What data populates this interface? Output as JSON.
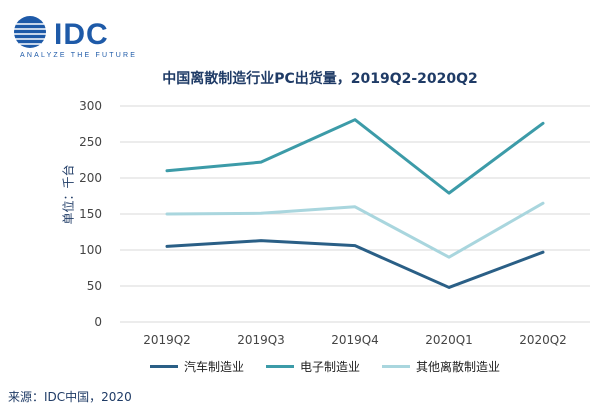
{
  "logo": {
    "text": "IDC",
    "tagline": "ANALYZE THE FUTURE"
  },
  "source": "来源：IDC中国，2020",
  "colors": {
    "series": [
      "#2a5f86",
      "#3c9ba8",
      "#a9d6de"
    ],
    "grid": "#d9d9d9",
    "brand": "#1e5aa8"
  },
  "chart_data": {
    "type": "line",
    "title": "中国离散制造行业PC出货量，2019Q2-2020Q2",
    "ylabel": "单位：千台",
    "xlabel": "",
    "categories": [
      "2019Q2",
      "2019Q3",
      "2019Q4",
      "2020Q1",
      "2020Q2"
    ],
    "ylim": [
      0,
      300
    ],
    "yticks": [
      0,
      50,
      100,
      150,
      200,
      250,
      300
    ],
    "grid": true,
    "legend": "bottom",
    "series": [
      {
        "name": "汽车制造业",
        "values": [
          105,
          113,
          106,
          48,
          97
        ]
      },
      {
        "name": "电子制造业",
        "values": [
          210,
          222,
          281,
          179,
          276
        ]
      },
      {
        "name": "其他离散制造业",
        "values": [
          150,
          151,
          160,
          90,
          165
        ]
      }
    ]
  }
}
